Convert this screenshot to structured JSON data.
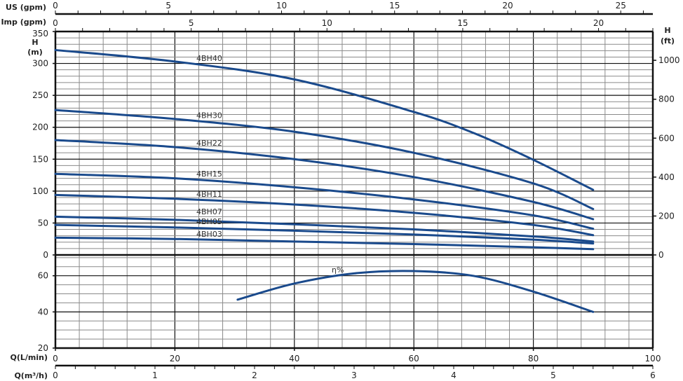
{
  "chart_data": [
    {
      "type": "line",
      "title": "",
      "xlabel": "Q(L/min)",
      "ylabel": "H (m)",
      "ylabel_right": "H (ft)",
      "xlim": [
        0,
        100
      ],
      "ylim": [
        0,
        350
      ],
      "ylim_right": [
        0,
        1148
      ],
      "x_ticks": [
        0,
        20,
        40,
        60,
        80,
        100
      ],
      "y_ticks": [
        0,
        50,
        100,
        150,
        200,
        250,
        300,
        350
      ],
      "y_right_ticks": [
        0,
        200,
        400,
        600,
        800,
        1000
      ],
      "grid": true,
      "top_axes": [
        {
          "label": "US (gpm)",
          "ticks": [
            0,
            5,
            10,
            15,
            20,
            25
          ],
          "max": 26.42
        },
        {
          "label": "Imp (gpm)",
          "ticks": [
            0,
            5,
            10,
            15,
            20
          ],
          "max": 22.0
        }
      ],
      "series": [
        {
          "name": "4BH40",
          "x": [
            0,
            20,
            40,
            60,
            70,
            80,
            90
          ],
          "y": [
            321,
            303,
            275,
            224,
            191,
            149,
            102
          ]
        },
        {
          "name": "4BH30",
          "x": [
            0,
            20,
            40,
            60,
            80,
            90
          ],
          "y": [
            227,
            213,
            193,
            160,
            112,
            72
          ]
        },
        {
          "name": "4BH22",
          "x": [
            0,
            20,
            40,
            60,
            80,
            90
          ],
          "y": [
            180,
            169,
            150,
            122,
            83,
            56
          ]
        },
        {
          "name": "4BH15",
          "x": [
            0,
            20,
            40,
            60,
            80,
            90
          ],
          "y": [
            127,
            120,
            106,
            87,
            62,
            41
          ]
        },
        {
          "name": "4BH11",
          "x": [
            0,
            20,
            40,
            60,
            80,
            90
          ],
          "y": [
            94,
            88,
            79,
            66,
            47,
            31
          ]
        },
        {
          "name": "4BH07",
          "x": [
            0,
            20,
            40,
            60,
            80,
            90
          ],
          "y": [
            60,
            55,
            48,
            40,
            29,
            21
          ]
        },
        {
          "name": "4BH05",
          "x": [
            0,
            20,
            40,
            60,
            80,
            90
          ],
          "y": [
            47,
            43,
            38,
            32,
            24,
            18
          ]
        },
        {
          "name": "4BH03",
          "x": [
            0,
            20,
            40,
            60,
            80,
            90
          ],
          "y": [
            27,
            25,
            21,
            17,
            12,
            9
          ]
        }
      ]
    },
    {
      "type": "line",
      "title": "",
      "xlabel": "Q(m³/h)",
      "ylabel": "",
      "xlim": [
        0,
        100
      ],
      "ylim": [
        20,
        71.5
      ],
      "y_ticks": [
        20,
        40,
        60
      ],
      "x2_ticks": [
        0,
        1,
        2,
        3,
        4,
        5,
        6
      ],
      "grid": true,
      "series": [
        {
          "name": "η%",
          "x": [
            30.5,
            40,
            50,
            60,
            70,
            80,
            90
          ],
          "y": [
            46.8,
            55.7,
            61.3,
            62.6,
            59.9,
            51.2,
            40
          ]
        }
      ]
    }
  ],
  "colors": {
    "curve": "#1a4a8c",
    "grid_minor": "#8a8a8a",
    "grid_major": "#111111"
  }
}
